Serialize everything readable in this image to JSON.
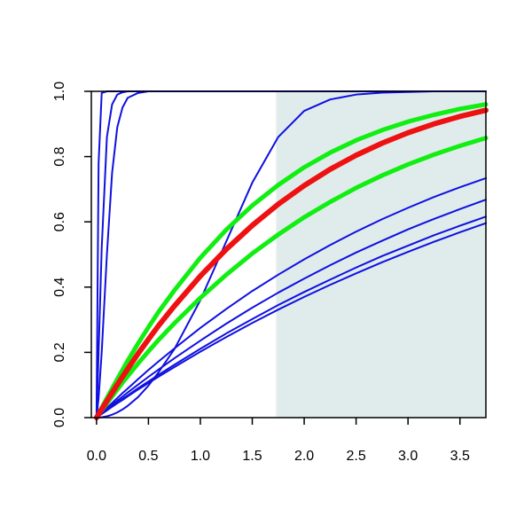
{
  "chart_data": {
    "type": "line",
    "title": "",
    "xlabel": "",
    "ylabel": "",
    "xlim": [
      -0.05,
      3.75
    ],
    "ylim": [
      0,
      1
    ],
    "grid": false,
    "legend": "none",
    "x_ticks": [
      0.0,
      0.5,
      1.0,
      1.5,
      2.0,
      2.5,
      3.0,
      3.5
    ],
    "x_tick_labels": [
      "0.0",
      "0.5",
      "1.0",
      "1.5",
      "2.0",
      "2.5",
      "3.0",
      "3.5"
    ],
    "y_ticks": [
      0.0,
      0.2,
      0.4,
      0.6,
      0.8,
      1.0
    ],
    "y_tick_labels": [
      "0.0",
      "0.2",
      "0.4",
      "0.6",
      "0.8",
      "1.0"
    ],
    "shaded_region": {
      "x_from": 1.73,
      "x_to": 3.75,
      "color": "#e0ecec"
    },
    "colors": {
      "blue": "#1010e0",
      "green": "#11ee11",
      "red": "#ee1111"
    },
    "x": [
      0.0,
      0.02,
      0.05,
      0.1,
      0.15,
      0.2,
      0.25,
      0.3,
      0.4,
      0.5,
      0.6,
      0.75,
      1.0,
      1.25,
      1.5,
      1.75,
      2.0,
      2.25,
      2.5,
      2.75,
      3.0,
      3.25,
      3.5,
      3.75
    ],
    "series": [
      {
        "color": "blue",
        "width": 2,
        "values": [
          0.0,
          0.78,
          0.995,
          1.0,
          1.0,
          1.0,
          1.0,
          1.0,
          1.0,
          1.0,
          1.0,
          1.0,
          1.0,
          1.0,
          1.0,
          1.0,
          1.0,
          1.0,
          1.0,
          1.0,
          1.0,
          1.0,
          1.0,
          1.0
        ]
      },
      {
        "color": "blue",
        "width": 2,
        "values": [
          0.0,
          0.2,
          0.52,
          0.86,
          0.96,
          0.99,
          0.997,
          1.0,
          1.0,
          1.0,
          1.0,
          1.0,
          1.0,
          1.0,
          1.0,
          1.0,
          1.0,
          1.0,
          1.0,
          1.0,
          1.0,
          1.0,
          1.0,
          1.0
        ]
      },
      {
        "color": "blue",
        "width": 2,
        "values": [
          0.0,
          0.06,
          0.2,
          0.5,
          0.75,
          0.89,
          0.95,
          0.98,
          0.995,
          1.0,
          1.0,
          1.0,
          1.0,
          1.0,
          1.0,
          1.0,
          1.0,
          1.0,
          1.0,
          1.0,
          1.0,
          1.0,
          1.0,
          1.0
        ]
      },
      {
        "color": "blue",
        "width": 2,
        "values": [
          0.0,
          0.0,
          0.001,
          0.004,
          0.009,
          0.016,
          0.025,
          0.036,
          0.063,
          0.098,
          0.14,
          0.21,
          0.36,
          0.54,
          0.72,
          0.86,
          0.94,
          0.975,
          0.99,
          0.996,
          0.998,
          1.0,
          1.0,
          1.0
        ]
      },
      {
        "color": "blue",
        "width": 2,
        "values": [
          0.0,
          0.006,
          0.015,
          0.03,
          0.045,
          0.06,
          0.075,
          0.089,
          0.118,
          0.146,
          0.173,
          0.212,
          0.275,
          0.333,
          0.388,
          0.438,
          0.485,
          0.529,
          0.57,
          0.608,
          0.643,
          0.676,
          0.706,
          0.734
        ]
      },
      {
        "color": "blue",
        "width": 2,
        "values": [
          0.0,
          0.005,
          0.013,
          0.026,
          0.039,
          0.052,
          0.064,
          0.077,
          0.101,
          0.125,
          0.148,
          0.182,
          0.236,
          0.288,
          0.337,
          0.383,
          0.426,
          0.467,
          0.506,
          0.542,
          0.577,
          0.609,
          0.639,
          0.668
        ]
      },
      {
        "color": "blue",
        "width": 2,
        "values": [
          0.0,
          0.005,
          0.012,
          0.023,
          0.035,
          0.046,
          0.057,
          0.068,
          0.09,
          0.111,
          0.132,
          0.162,
          0.211,
          0.258,
          0.302,
          0.345,
          0.385,
          0.423,
          0.46,
          0.495,
          0.527,
          0.559,
          0.588,
          0.616
        ]
      },
      {
        "color": "blue",
        "width": 2,
        "values": [
          0.0,
          0.004,
          0.011,
          0.022,
          0.033,
          0.044,
          0.054,
          0.065,
          0.086,
          0.106,
          0.126,
          0.155,
          0.202,
          0.247,
          0.29,
          0.331,
          0.37,
          0.407,
          0.442,
          0.476,
          0.508,
          0.539,
          0.568,
          0.596
        ]
      },
      {
        "color": "green",
        "width": 5,
        "values": [
          0.0,
          0.012,
          0.03,
          0.06,
          0.089,
          0.118,
          0.146,
          0.174,
          0.227,
          0.277,
          0.325,
          0.39,
          0.49,
          0.576,
          0.65,
          0.713,
          0.767,
          0.812,
          0.85,
          0.881,
          0.907,
          0.928,
          0.946,
          0.96
        ]
      },
      {
        "color": "green",
        "width": 5,
        "values": [
          0.0,
          0.009,
          0.022,
          0.044,
          0.065,
          0.086,
          0.107,
          0.127,
          0.166,
          0.203,
          0.239,
          0.289,
          0.367,
          0.438,
          0.503,
          0.561,
          0.614,
          0.661,
          0.704,
          0.742,
          0.776,
          0.806,
          0.833,
          0.857
        ]
      },
      {
        "color": "red",
        "width": 6,
        "values": [
          0.0,
          0.01,
          0.026,
          0.051,
          0.076,
          0.101,
          0.125,
          0.149,
          0.196,
          0.24,
          0.283,
          0.342,
          0.434,
          0.516,
          0.589,
          0.654,
          0.711,
          0.761,
          0.804,
          0.841,
          0.873,
          0.9,
          0.923,
          0.942
        ]
      }
    ]
  }
}
